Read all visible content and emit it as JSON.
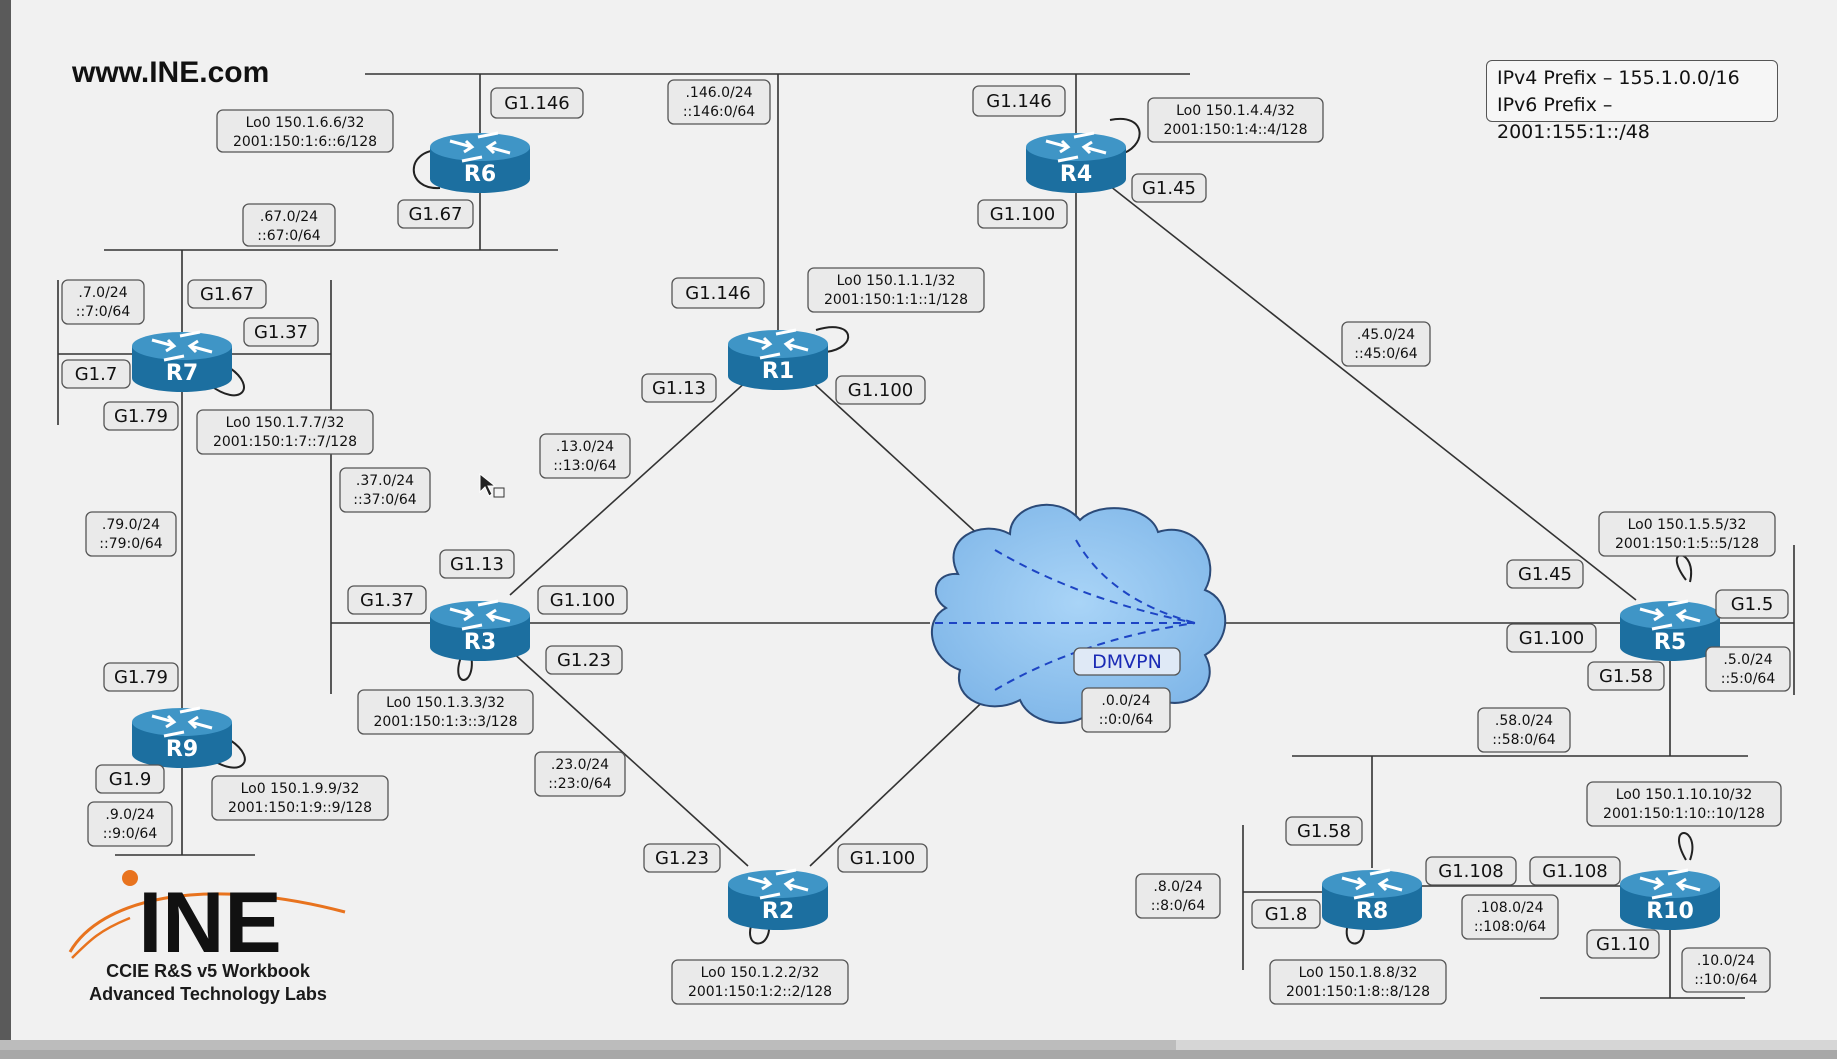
{
  "site": "www.INE.com",
  "prefixes": [
    "IPv4 Prefix – 155.1.0.0/16",
    "IPv6 Prefix – 2001:155:1::/48"
  ],
  "logo": {
    "brand": "INE",
    "line1": "CCIE R&S v5 Workbook",
    "line2": "Advanced Technology Labs"
  },
  "cloud_label": "DMVPN",
  "colors": {
    "router": "#1c6fa0",
    "router_top": "#3f95c6",
    "cloud": "#8fc4f2",
    "cloud_edge": "#2b4a78",
    "dmvpn_text": "#1b2bb5",
    "logo_orange": "#e8731e"
  },
  "routers": [
    "R1",
    "R2",
    "R3",
    "R4",
    "R5",
    "R6",
    "R7",
    "R8",
    "R9",
    "R10"
  ],
  "labels": {
    "r6_g1146": "G1.146",
    "r6_g167": "G1.67",
    "r6_lo": [
      "Lo0 150.1.6.6/32",
      "2001:150:1:6::6/128"
    ],
    "seg146": [
      ".146.0/24",
      "::146:0/64"
    ],
    "seg67": [
      ".67.0/24",
      "::67:0/64"
    ],
    "r4_g1146": "G1.146",
    "r4_lo": [
      "Lo0 150.1.4.4/32",
      "2001:150:1:4::4/128"
    ],
    "r4_g145": "G1.45",
    "r4_g1100": "G1.100",
    "r7_g167": "G1.67",
    "r7_g137": "G1.37",
    "r7_g17": "G1.7",
    "r7_g179": "G1.79",
    "r7_lo": [
      "Lo0 150.1.7.7/32",
      "2001:150:1:7::7/128"
    ],
    "seg7": [
      ".7.0/24",
      "::7:0/64"
    ],
    "seg37": [
      ".37.0/24",
      "::37:0/64"
    ],
    "seg79": [
      ".79.0/24",
      "::79:0/64"
    ],
    "r1_g1146": "G1.146",
    "r1_lo": [
      "Lo0 150.1.1.1/32",
      "2001:150:1:1::1/128"
    ],
    "r1_g113": "G1.13",
    "r1_g1100": "G1.100",
    "seg13": [
      ".13.0/24",
      "::13:0/64"
    ],
    "seg45": [
      ".45.0/24",
      "::45:0/64"
    ],
    "r3_g113": "G1.13",
    "r3_g137": "G1.37",
    "r3_g1100": "G1.100",
    "r3_g123": "G1.23",
    "r3_lo": [
      "Lo0 150.1.3.3/32",
      "2001:150:1:3::3/128"
    ],
    "seg23": [
      ".23.0/24",
      "::23:0/64"
    ],
    "seg0": [
      ".0.0/24",
      "::0:0/64"
    ],
    "r5_lo": [
      "Lo0 150.1.5.5/32",
      "2001:150:1:5::5/128"
    ],
    "r5_g145": "G1.45",
    "r5_g15": "G1.5",
    "r5_g1100": "G1.100",
    "r5_g158": "G1.58",
    "seg5": [
      ".5.0/24",
      "::5:0/64"
    ],
    "seg58": [
      ".58.0/24",
      "::58:0/64"
    ],
    "r9_g179": "G1.79",
    "r9_g19": "G1.9",
    "r9_lo": [
      "Lo0 150.1.9.9/32",
      "2001:150:1:9::9/128"
    ],
    "seg9": [
      ".9.0/24",
      "::9:0/64"
    ],
    "r2_g123": "G1.23",
    "r2_g1100": "G1.100",
    "r2_lo": [
      "Lo0 150.1.2.2/32",
      "2001:150:1:2::2/128"
    ],
    "r8_g158": "G1.58",
    "r8_g1108": "G1.108",
    "r8_g18": "G1.8",
    "r8_lo": [
      "Lo0 150.1.8.8/32",
      "2001:150:1:8::8/128"
    ],
    "seg8": [
      ".8.0/24",
      "::8:0/64"
    ],
    "seg108": [
      ".108.0/24",
      "::108:0/64"
    ],
    "r10_lo": [
      "Lo0 150.1.10.10/32",
      "2001:150:1:10::10/128"
    ],
    "r10_g1108": "G1.108",
    "r10_g110": "G1.10",
    "seg10": [
      ".10.0/24",
      "::10:0/64"
    ]
  },
  "progress": 0.64
}
